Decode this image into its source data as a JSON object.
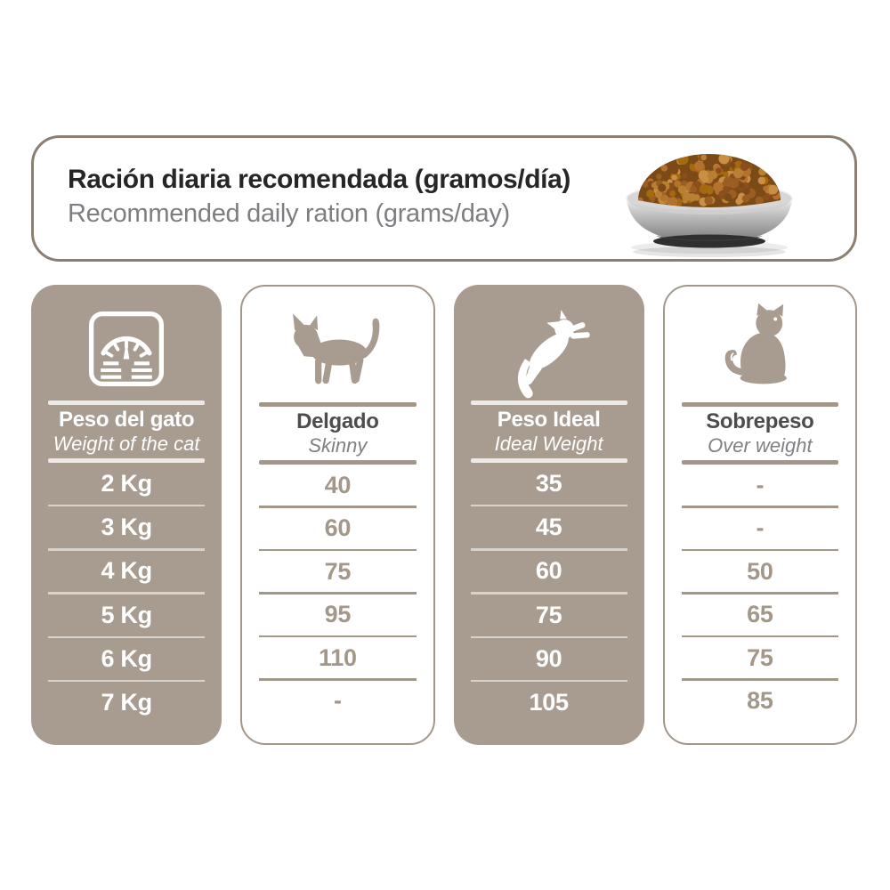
{
  "header": {
    "title": "Ración diaria recomendada (gramos/día)",
    "subtitle": "Recommended daily ration (grams/day)"
  },
  "icons": {
    "bowl": "food-bowl-with-kibble",
    "scale": "weight-scale-icon",
    "skinny": "walking-cat-icon",
    "ideal": "jumping-cat-icon",
    "overweight": "sitting-cat-icon"
  },
  "colors": {
    "taupe": "#a89c90",
    "column_border": "#a3978a",
    "header_border": "#8b7f74",
    "title_text": "#262626",
    "subtitle_text": "#7d7e81",
    "light_value_text": "#a3978a",
    "white": "#ffffff",
    "kibble_brown": "#8a5a20"
  },
  "chart_data": {
    "type": "table",
    "title": "Ración diaria recomendada (gramos/día)",
    "subtitle": "Recommended daily ration (grams/day)",
    "unit": "grams/day",
    "columns": [
      {
        "id": "weight",
        "title": "Peso del gato",
        "subtitle": "Weight of the cat",
        "icon": "weight-scale-icon",
        "style": "taupe",
        "values": [
          "2 Kg",
          "3 Kg",
          "4 Kg",
          "5 Kg",
          "6 Kg",
          "7 Kg"
        ]
      },
      {
        "id": "skinny",
        "title": "Delgado",
        "subtitle": "Skinny",
        "icon": "walking-cat-icon",
        "style": "light",
        "values": [
          "40",
          "60",
          "75",
          "95",
          "110",
          "-"
        ]
      },
      {
        "id": "ideal",
        "title": "Peso Ideal",
        "subtitle": "Ideal Weight",
        "icon": "jumping-cat-icon",
        "style": "taupe",
        "values": [
          "35",
          "45",
          "60",
          "75",
          "90",
          "105"
        ]
      },
      {
        "id": "overweight",
        "title": "Sobrepeso",
        "subtitle": "Over weight",
        "icon": "sitting-cat-icon",
        "style": "light",
        "values": [
          "-",
          "-",
          "50",
          "65",
          "75",
          "85"
        ]
      }
    ]
  }
}
